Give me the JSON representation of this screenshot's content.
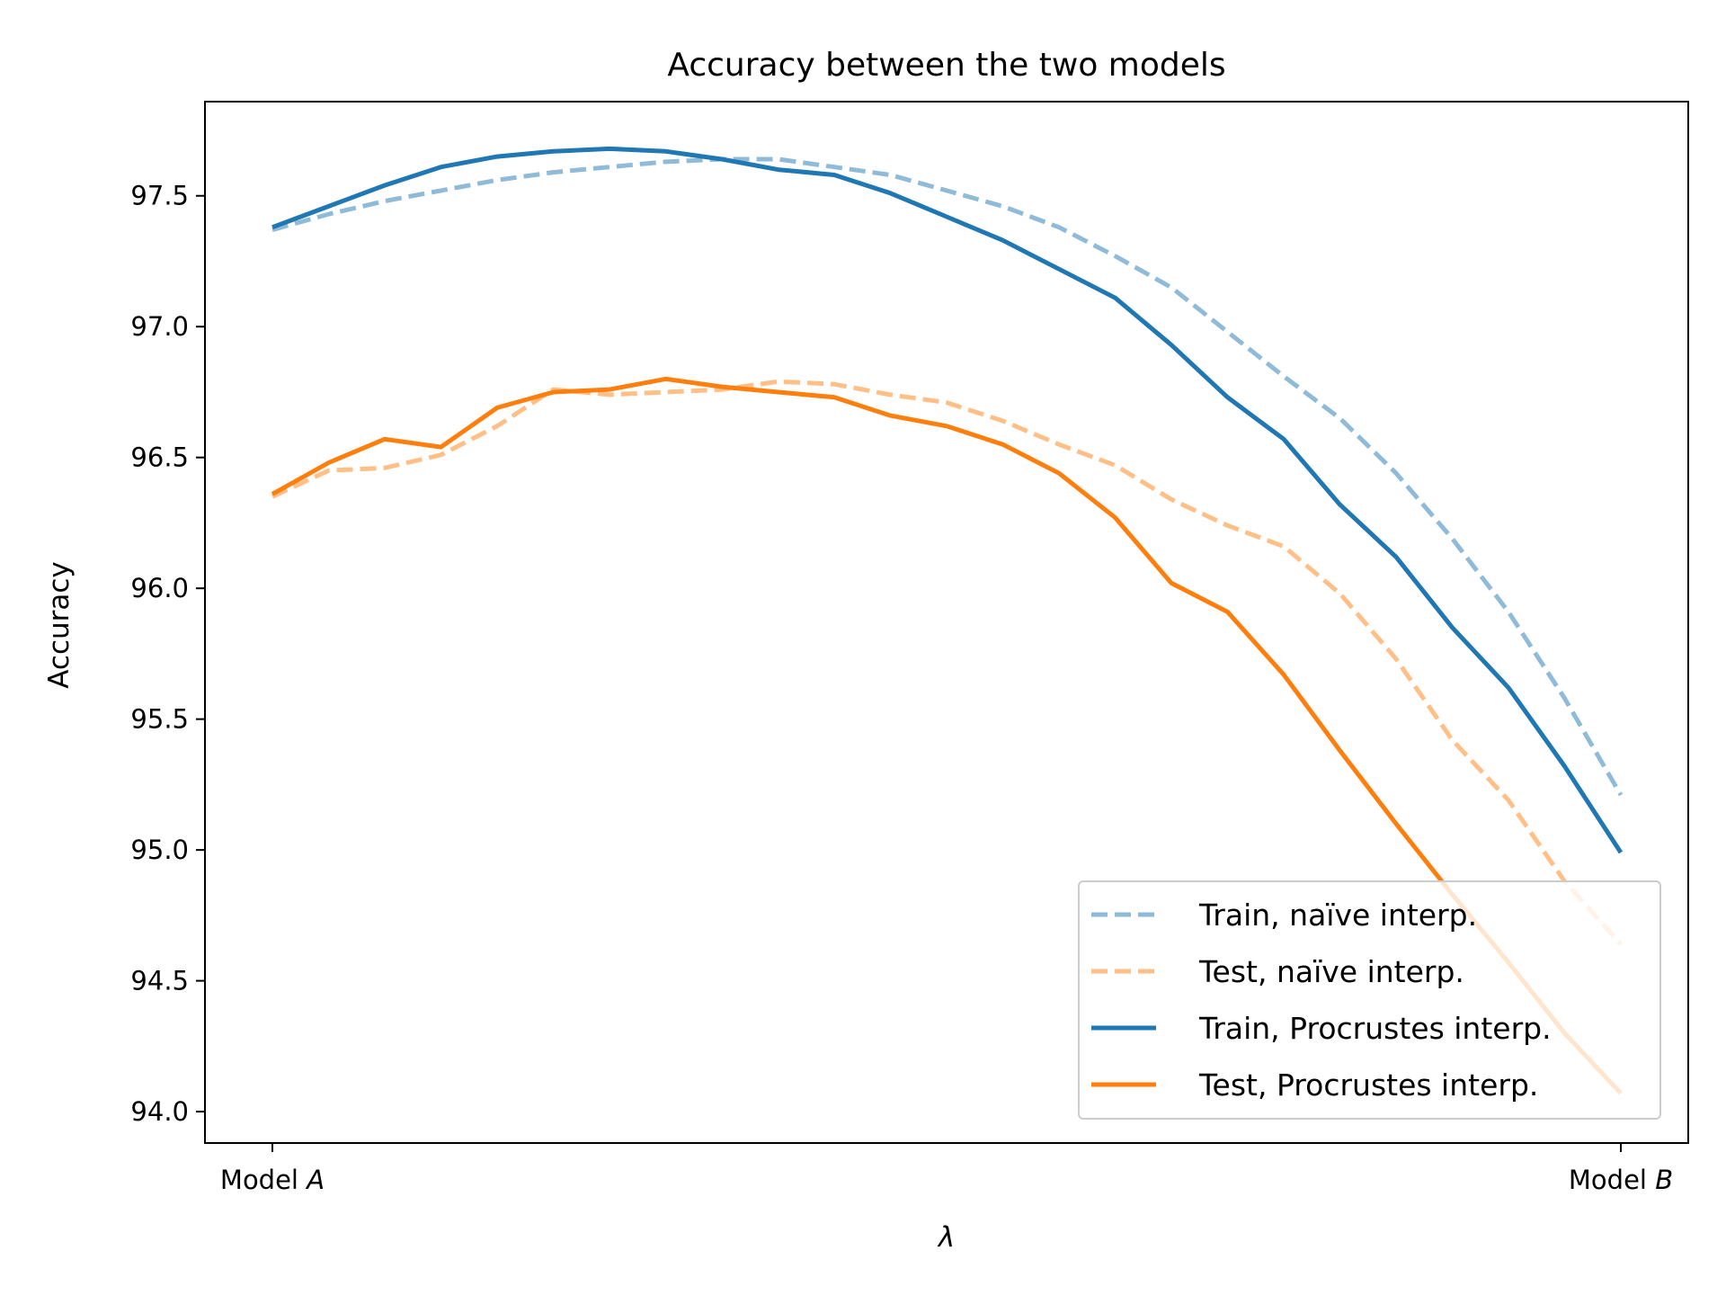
{
  "chart_data": {
    "type": "line",
    "title": "Accuracy between the two models",
    "xlabel": "λ",
    "ylabel": "Accuracy",
    "x_tick_labels": [
      {
        "prefix": "Model ",
        "var": "A"
      },
      {
        "prefix": "Model ",
        "var": "B"
      }
    ],
    "yticks": [
      "94.0",
      "94.5",
      "95.0",
      "95.5",
      "96.0",
      "96.5",
      "97.0",
      "97.5"
    ],
    "ylim": [
      93.88,
      97.86
    ],
    "xlim": [
      -0.05,
      1.05
    ],
    "x": [
      0,
      0.0417,
      0.0833,
      0.125,
      0.1667,
      0.2083,
      0.25,
      0.2917,
      0.3333,
      0.375,
      0.4167,
      0.4583,
      0.5,
      0.5417,
      0.5833,
      0.625,
      0.6667,
      0.7083,
      0.75,
      0.7917,
      0.8333,
      0.875,
      0.9167,
      0.9583,
      1.0
    ],
    "grid": false,
    "legend_position": "lower-right",
    "series": [
      {
        "name": "Train, naïve interp.",
        "color": "#1f77b4",
        "style": "dashed",
        "alpha": 0.5,
        "values": [
          97.37,
          97.43,
          97.48,
          97.52,
          97.56,
          97.59,
          97.61,
          97.63,
          97.64,
          97.64,
          97.61,
          97.58,
          97.52,
          97.46,
          97.38,
          97.27,
          97.15,
          96.98,
          96.81,
          96.65,
          96.44,
          96.19,
          95.91,
          95.58,
          95.21
        ]
      },
      {
        "name": "Test, naïve interp.",
        "color": "#ff7f0e",
        "style": "dashed",
        "alpha": 0.5,
        "values": [
          96.35,
          96.45,
          96.46,
          96.51,
          96.62,
          96.76,
          96.74,
          96.75,
          96.76,
          96.79,
          96.78,
          96.74,
          96.71,
          96.64,
          96.55,
          96.47,
          96.34,
          96.24,
          96.16,
          95.98,
          95.73,
          95.42,
          95.19,
          94.88,
          94.64
        ]
      },
      {
        "name": "Train, Procrustes interp.",
        "color": "#1f77b4",
        "style": "solid",
        "alpha": 1.0,
        "values": [
          97.38,
          97.46,
          97.54,
          97.61,
          97.65,
          97.67,
          97.68,
          97.67,
          97.64,
          97.6,
          97.58,
          97.51,
          97.42,
          97.33,
          97.22,
          97.11,
          96.93,
          96.73,
          96.57,
          96.32,
          96.12,
          95.85,
          95.62,
          95.32,
          94.99
        ]
      },
      {
        "name": "Test, Procrustes interp.",
        "color": "#ff7f0e",
        "style": "solid",
        "alpha": 1.0,
        "values": [
          96.36,
          96.48,
          96.57,
          96.54,
          96.69,
          96.75,
          96.76,
          96.8,
          96.77,
          96.75,
          96.73,
          96.66,
          96.62,
          96.55,
          96.44,
          96.27,
          96.02,
          95.91,
          95.67,
          95.38,
          95.1,
          94.83,
          94.57,
          94.3,
          94.07
        ]
      }
    ]
  }
}
